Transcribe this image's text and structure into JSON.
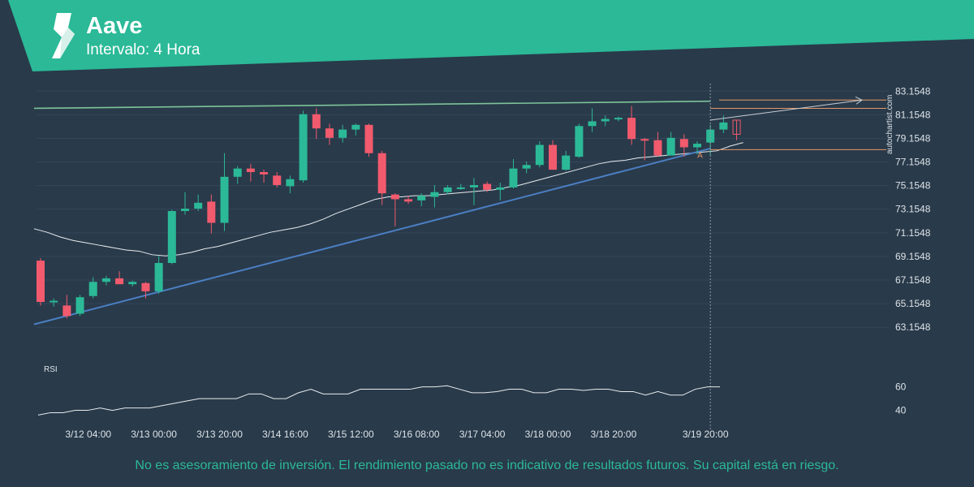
{
  "header": {
    "title": "Aave",
    "interval": "Intervalo: 4 Hora",
    "brand_color": "#2bb997"
  },
  "watermark": "autochartist.com",
  "disclaimer": "No es asesoramiento de inversión. El rendimiento pasado no es indicativo de resultados futuros. Su capital está en riesgo.",
  "chart_data": {
    "type": "candlestick",
    "y_ticks": [
      "83.1548",
      "81.1548",
      "79.1548",
      "77.1548",
      "75.1548",
      "73.1548",
      "71.1548",
      "69.1548",
      "67.1548",
      "65.1548",
      "63.1548"
    ],
    "ylim": [
      62.0,
      84.0
    ],
    "x_ticks": [
      "3/12 04:00",
      "3/13 00:00",
      "3/13 20:00",
      "3/14 16:00",
      "3/15 12:00",
      "3/16 08:00",
      "3/17 04:00",
      "3/18 00:00",
      "3/18 20:00",
      "3/19 20:00"
    ],
    "x_tick_bar_index": [
      4,
      9,
      14,
      19,
      24,
      29,
      34,
      39,
      44,
      51
    ],
    "bar_count": 53,
    "candles": [
      [
        68.8,
        69.0,
        65.0,
        65.3
      ],
      [
        65.3,
        65.6,
        64.9,
        65.4
      ],
      [
        65.0,
        65.9,
        63.9,
        64.1
      ],
      [
        64.3,
        65.9,
        64.1,
        65.7
      ],
      [
        65.8,
        67.4,
        65.6,
        67.0
      ],
      [
        67.0,
        67.5,
        66.7,
        67.3
      ],
      [
        67.3,
        67.9,
        66.9,
        66.8
      ],
      [
        66.8,
        67.1,
        66.6,
        67.0
      ],
      [
        66.9,
        67.0,
        65.6,
        66.2
      ],
      [
        66.2,
        69.2,
        66.0,
        68.6
      ],
      [
        68.6,
        73.1,
        68.5,
        73.0
      ],
      [
        73.0,
        74.6,
        72.7,
        73.2
      ],
      [
        73.2,
        74.4,
        73.0,
        73.7
      ],
      [
        73.8,
        74.4,
        71.1,
        72.0
      ],
      [
        72.0,
        77.9,
        71.3,
        75.9
      ],
      [
        75.9,
        76.8,
        75.3,
        76.6
      ],
      [
        76.6,
        77.0,
        75.5,
        76.3
      ],
      [
        76.3,
        76.5,
        75.4,
        76.1
      ],
      [
        76.0,
        76.3,
        75.0,
        75.2
      ],
      [
        75.1,
        76.0,
        74.5,
        75.7
      ],
      [
        75.6,
        81.5,
        75.4,
        81.2
      ],
      [
        81.2,
        81.7,
        79.1,
        80.0
      ],
      [
        80.0,
        80.4,
        78.6,
        79.2
      ],
      [
        79.2,
        80.3,
        78.8,
        79.9
      ],
      [
        79.9,
        80.4,
        79.4,
        80.3
      ],
      [
        80.3,
        80.4,
        77.6,
        77.9
      ],
      [
        77.9,
        78.1,
        73.5,
        74.5
      ],
      [
        74.4,
        74.5,
        71.7,
        74.0
      ],
      [
        74.0,
        74.3,
        73.6,
        73.8
      ],
      [
        73.9,
        74.5,
        73.4,
        74.3
      ],
      [
        74.2,
        75.2,
        73.3,
        74.6
      ],
      [
        74.6,
        75.2,
        74.4,
        75.0
      ],
      [
        75.0,
        75.3,
        74.8,
        75.0
      ],
      [
        75.0,
        75.8,
        73.5,
        75.2
      ],
      [
        75.3,
        75.5,
        74.6,
        74.8
      ],
      [
        74.8,
        75.4,
        73.9,
        75.0
      ],
      [
        75.0,
        77.4,
        74.9,
        76.6
      ],
      [
        76.6,
        77.2,
        76.2,
        76.9
      ],
      [
        76.9,
        78.9,
        76.7,
        78.6
      ],
      [
        78.6,
        79.0,
        76.5,
        76.5
      ],
      [
        76.5,
        78.1,
        76.4,
        77.7
      ],
      [
        77.6,
        80.4,
        77.5,
        80.2
      ],
      [
        80.2,
        81.7,
        79.7,
        80.6
      ],
      [
        80.6,
        81.1,
        80.2,
        80.8
      ],
      [
        80.8,
        81.0,
        80.6,
        80.9
      ],
      [
        80.9,
        81.9,
        78.6,
        79.1
      ],
      [
        79.1,
        79.2,
        77.3,
        79.0
      ],
      [
        79.0,
        79.7,
        77.6,
        77.7
      ],
      [
        77.7,
        79.7,
        77.7,
        79.2
      ],
      [
        79.1,
        79.5,
        77.6,
        78.4
      ],
      [
        78.4,
        78.9,
        77.8,
        78.7
      ],
      [
        78.8,
        80.3,
        77.7,
        79.9
      ],
      [
        79.9,
        81.1,
        79.6,
        80.5
      ]
    ],
    "pattern_candle": [
      80.7,
      80.7,
      79.0,
      79.5
    ],
    "moving_average": [
      71.5,
      71.2,
      70.8,
      70.5,
      70.3,
      70.1,
      69.9,
      69.7,
      69.6,
      69.3,
      69.2,
      69.3,
      69.5,
      69.8,
      70.0,
      70.3,
      70.6,
      70.9,
      71.2,
      71.4,
      71.6,
      71.9,
      72.3,
      72.8,
      73.2,
      73.6,
      74.0,
      74.2,
      74.2,
      74.3,
      74.3,
      74.4,
      74.5,
      74.6,
      74.7,
      74.8,
      75.0,
      75.2,
      75.5,
      75.8,
      76.1,
      76.4,
      76.7,
      77.0,
      77.2,
      77.3,
      77.5,
      77.6,
      77.7,
      77.8,
      77.9,
      78.0,
      78.1,
      78.5,
      78.8
    ],
    "resistance_line": {
      "from": [
        -0.5,
        81.7
      ],
      "to": [
        51.0,
        82.3
      ],
      "color": "#7dc49a"
    },
    "support_line": {
      "from": [
        -0.5,
        63.4
      ],
      "to": [
        51.0,
        78.3
      ],
      "color": "#4b7fc4"
    },
    "forecast_arrow": {
      "from": [
        51.0,
        80.7
      ],
      "to": [
        63.0,
        82.4
      ]
    },
    "target_levels": [
      82.4,
      81.7,
      78.2
    ],
    "target_color": "#e6976a",
    "point_label": "A",
    "rsi": {
      "label": "RSI",
      "y_ticks": [
        "60",
        "40"
      ],
      "ylim": [
        30,
        75
      ],
      "values": [
        36,
        38,
        38,
        40,
        40,
        42,
        40,
        42,
        42,
        42,
        44,
        46,
        48,
        50,
        50,
        50,
        50,
        54,
        54,
        50,
        50,
        55,
        58,
        54,
        54,
        54,
        58,
        58,
        58,
        58,
        58,
        60,
        60,
        61,
        58,
        55,
        55,
        56,
        58,
        58,
        55,
        55,
        58,
        58,
        57,
        58,
        58,
        56,
        56,
        53,
        56,
        53,
        53,
        58,
        60,
        60
      ]
    }
  }
}
